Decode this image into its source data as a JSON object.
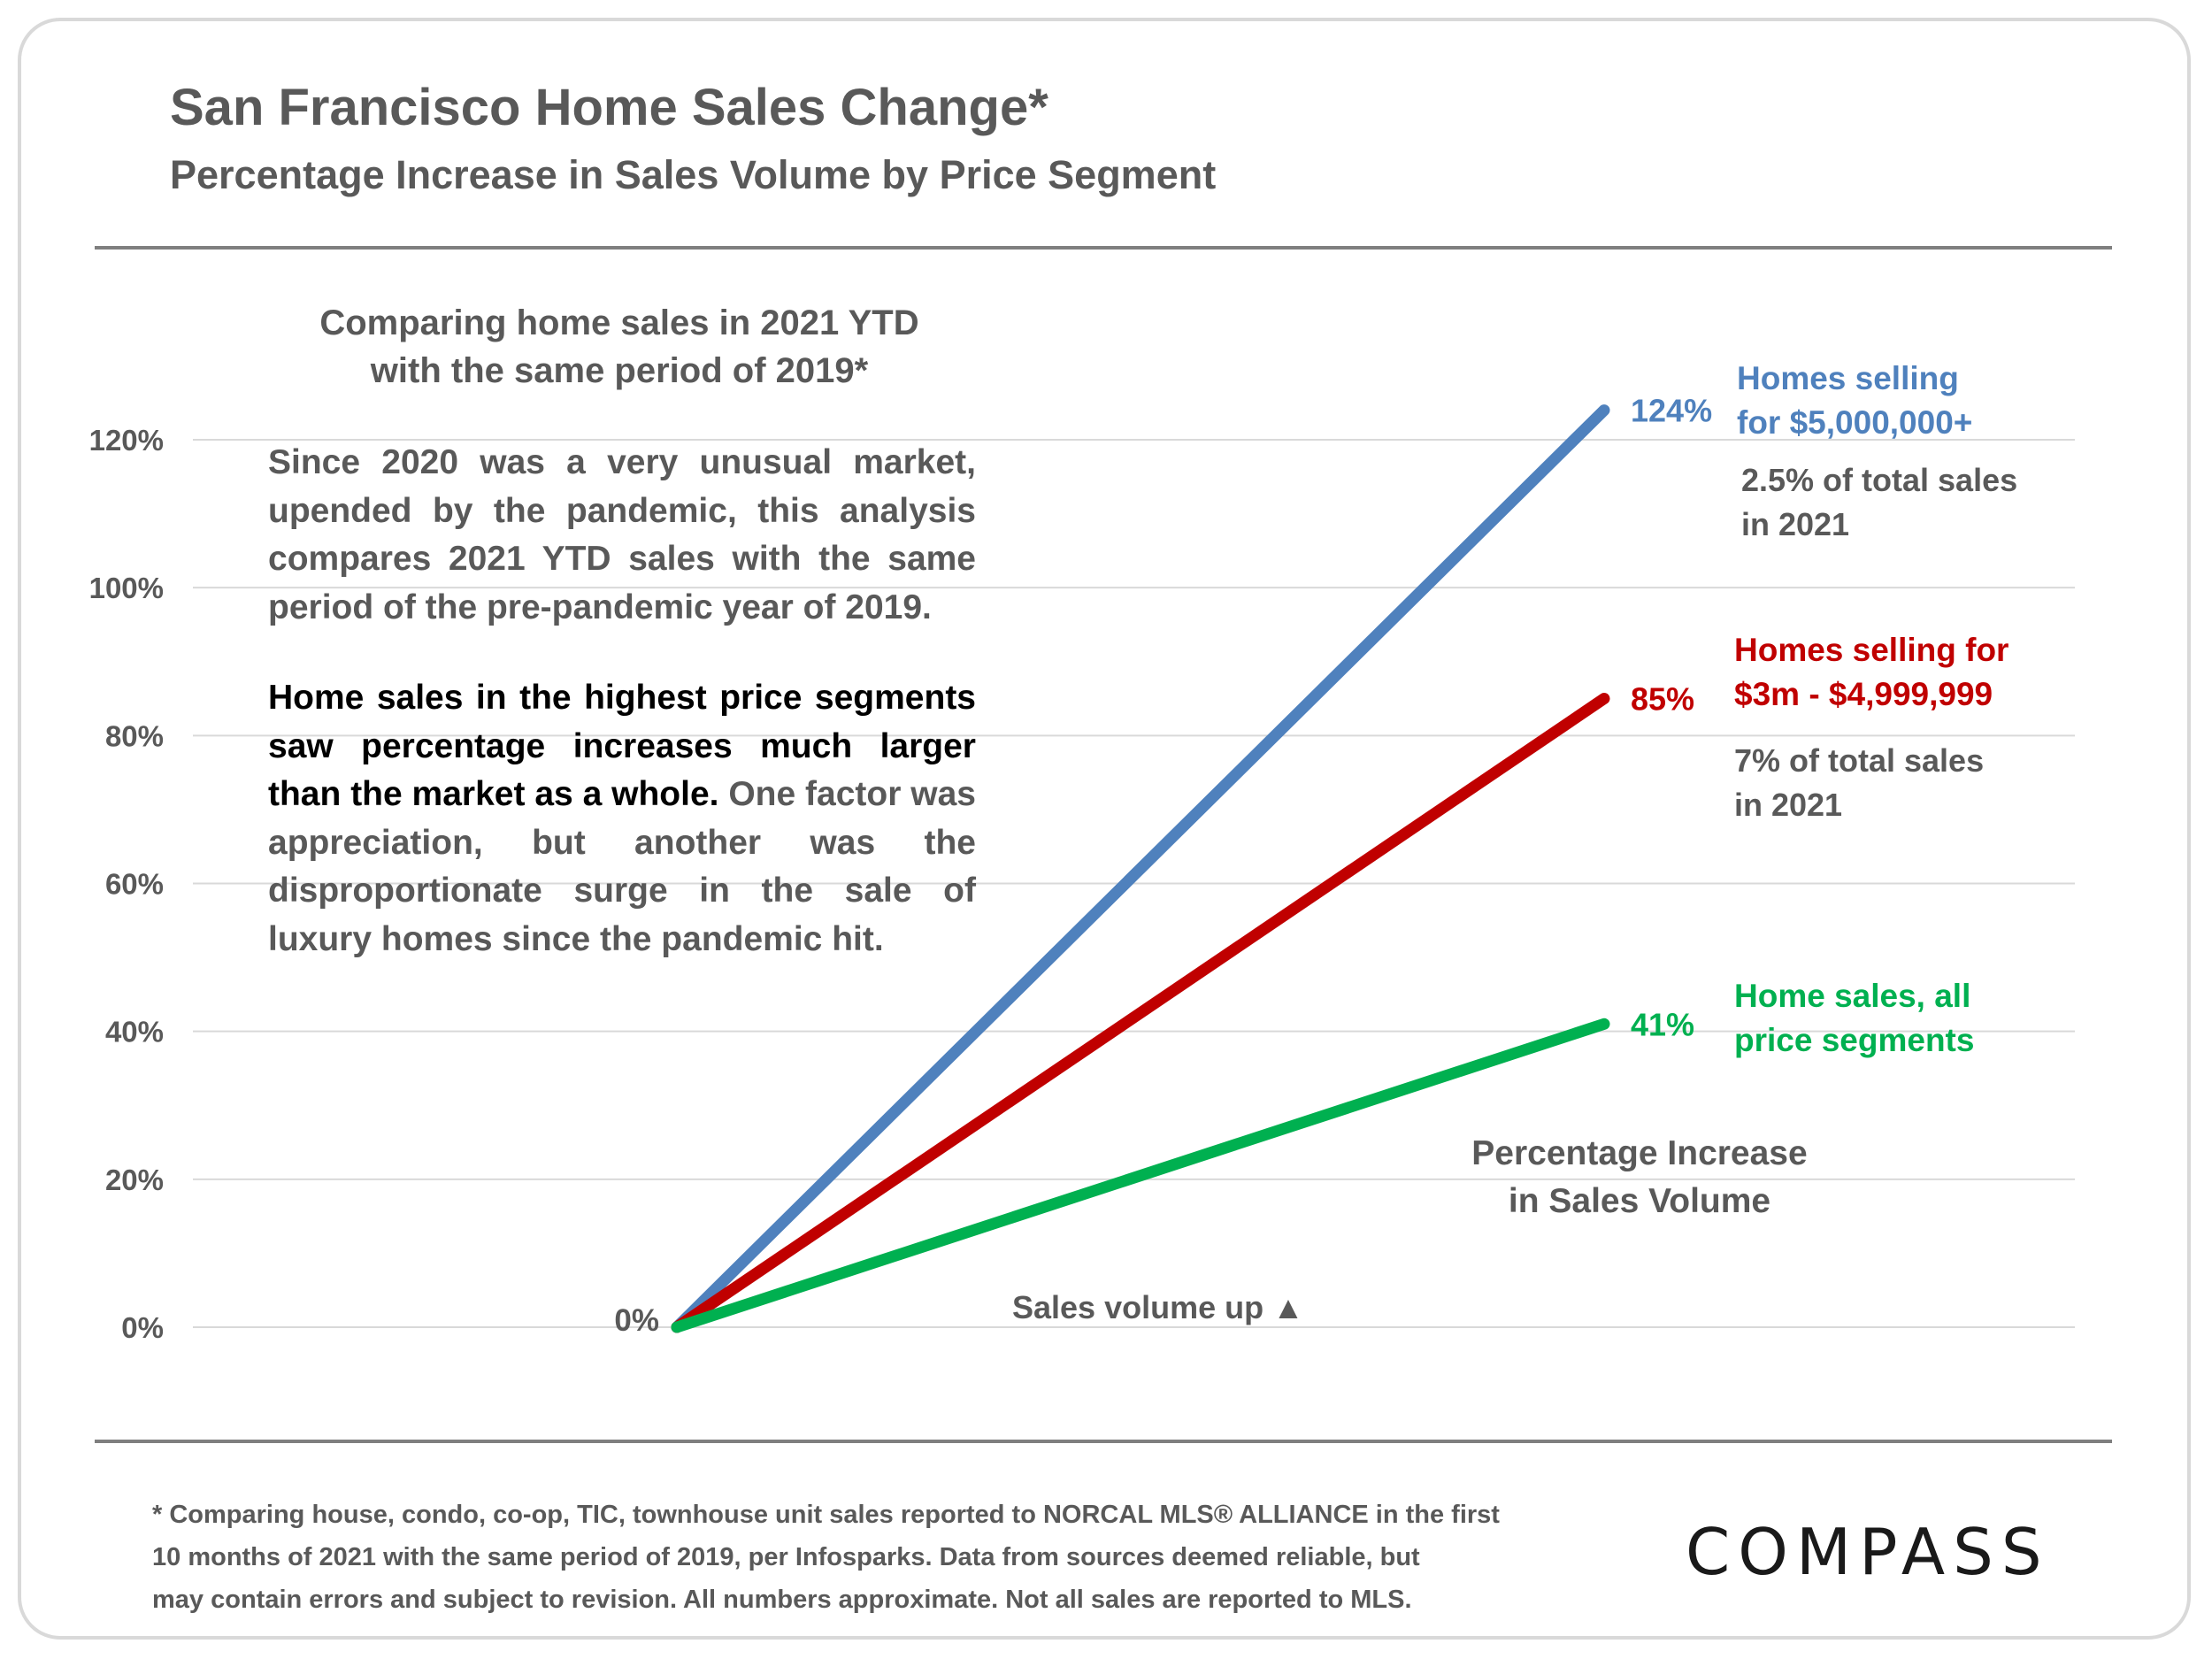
{
  "header": {
    "title": "San Francisco Home Sales Change*",
    "subtitle": "Percentage Increase in Sales Volume by Price Segment"
  },
  "panel": {
    "heading_lines": [
      "Comparing home sales in 2021 YTD",
      "with the same period of 2019*"
    ],
    "paragraph1": "Since 2020 was a very unusual market, upended by the pandemic, this analysis compares 2021 YTD sales with the same period of the pre-pandemic year of 2019.",
    "paragraph2_strong": "Home sales in the highest price segments saw percentage increases much larger than the market as a whole.",
    "paragraph2_rest": " One factor was appreciation, but another was the disproportionate surge in the sale of luxury homes since the pandemic hit."
  },
  "chart_data": {
    "type": "line",
    "y_ticks": [
      "0%",
      "20%",
      "40%",
      "60%",
      "80%",
      "100%",
      "120%"
    ],
    "ylim": [
      0,
      120
    ],
    "grid": true,
    "start_label": "0%",
    "series": [
      {
        "key": "luxury",
        "color": "#4f81bd",
        "values": [
          0,
          124
        ],
        "end_label": "124%",
        "name_lines": [
          "Homes selling",
          "for $5,000,000+"
        ],
        "note_lines": [
          "2.5% of total sales",
          "in 2021"
        ]
      },
      {
        "key": "high",
        "color": "#c00000",
        "values": [
          0,
          85
        ],
        "end_label": "85%",
        "name_lines": [
          "Homes selling for",
          "$3m - $4,999,999"
        ],
        "note_lines": [
          "7% of total sales",
          "in 2021"
        ]
      },
      {
        "key": "all",
        "color": "#00b050",
        "values": [
          0,
          41
        ],
        "end_label": "41%",
        "name_lines": [
          "Home sales, all",
          "price segments"
        ],
        "note_lines": []
      }
    ],
    "annotation_lines": [
      "Percentage Increase",
      "in Sales Volume"
    ],
    "axis_note": "Sales volume up ▲"
  },
  "footnote_lines": [
    "* Comparing house, condo, co-op, TIC, townhouse unit sales reported to NORCAL MLS® ALLIANCE in the first",
    "10 months of 2021 with the same period of 2019, per Infosparks. Data from sources deemed reliable, but",
    "may contain errors and subject to revision. All numbers approximate. Not all sales are reported to MLS."
  ],
  "brand": {
    "logo_text": "COMPASS"
  }
}
